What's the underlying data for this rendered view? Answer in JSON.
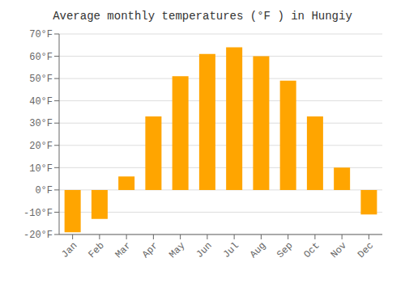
{
  "chart_data": {
    "type": "bar",
    "title": "Average monthly temperatures (°F ) in Hungiy",
    "categories": [
      "Jan",
      "Feb",
      "Mar",
      "Apr",
      "May",
      "Jun",
      "Jul",
      "Aug",
      "Sep",
      "Oct",
      "Nov",
      "Dec"
    ],
    "values": [
      -19,
      -13,
      6,
      33,
      51,
      61,
      64,
      60,
      49,
      33,
      10,
      -11
    ],
    "color": "#FFA500",
    "ylim": [
      -20,
      70
    ],
    "yticks": [
      {
        "value": -20,
        "label": "-20°F"
      },
      {
        "value": -10,
        "label": "-10°F"
      },
      {
        "value": 0,
        "label": "0°F"
      },
      {
        "value": 10,
        "label": "10°F"
      },
      {
        "value": 20,
        "label": "20°F"
      },
      {
        "value": 30,
        "label": "30°F"
      },
      {
        "value": 40,
        "label": "40°F"
      },
      {
        "value": 50,
        "label": "50°F"
      },
      {
        "value": 60,
        "label": "60°F"
      },
      {
        "value": 70,
        "label": "70°F"
      }
    ],
    "grid": true
  }
}
